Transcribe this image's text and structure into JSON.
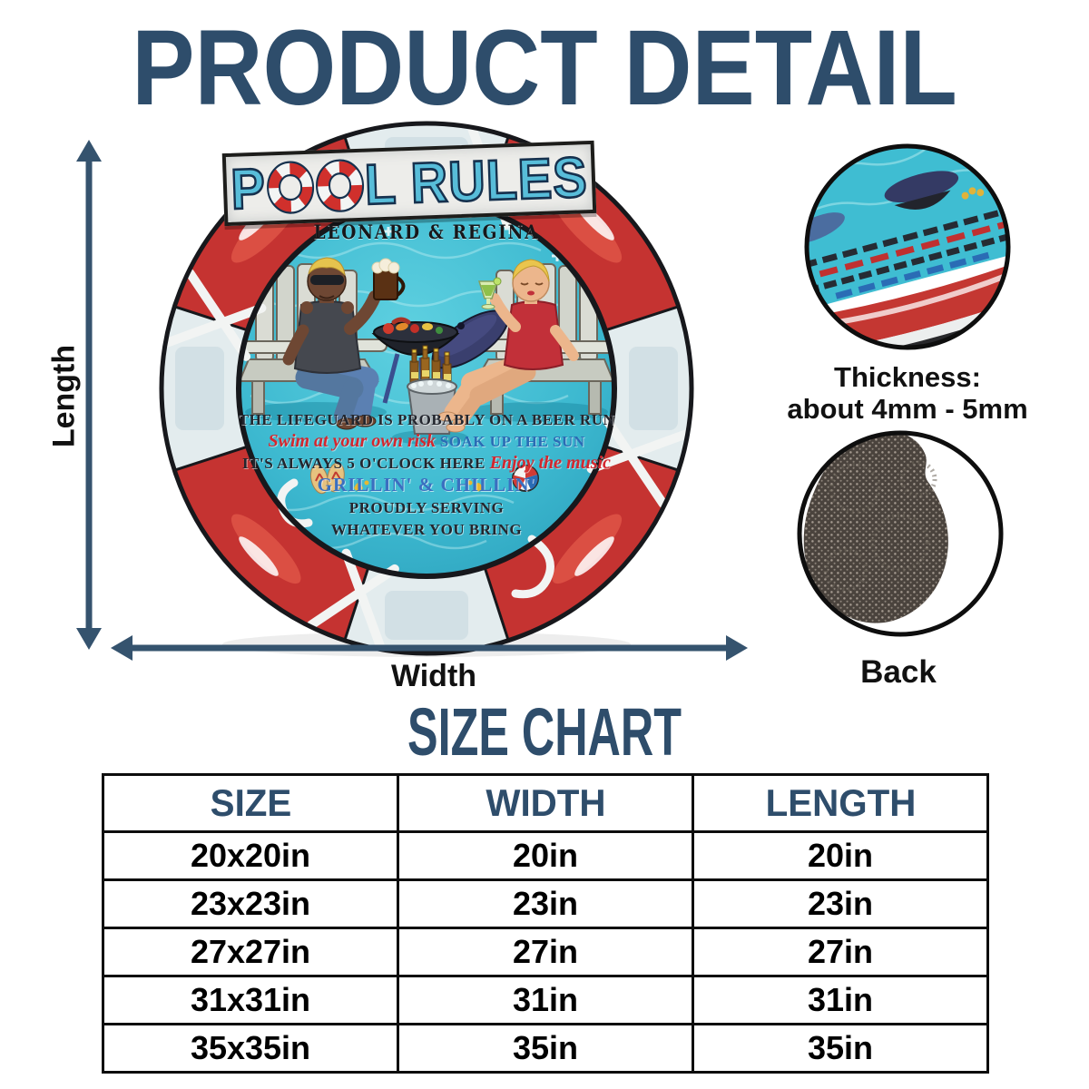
{
  "page": {
    "title": "PRODUCT DETAIL"
  },
  "dimensions": {
    "length_label": "Length",
    "width_label": "Width"
  },
  "product_sign": {
    "banner_title": "POOL RULES",
    "banner_parts": [
      {
        "t": "P"
      },
      {
        "ring": true
      },
      {
        "ring": true
      },
      {
        "t": "L RULES"
      }
    ],
    "owners_names": "LEONARD & REGINA",
    "rule_lines": [
      {
        "segments": [
          {
            "text": "THE LIFEGUARD IS PROBABLY ON A BEER RUN",
            "style": "dark"
          }
        ]
      },
      {
        "segments": [
          {
            "text": "Swim at your own risk",
            "style": "script"
          },
          {
            "text": " SOAK UP THE SUN",
            "style": "blue"
          }
        ]
      },
      {
        "segments": [
          {
            "text": "IT'S ALWAYS 5 O'CLOCK HERE ",
            "style": "dark"
          },
          {
            "text": "Enjoy the music",
            "style": "script"
          }
        ]
      },
      {
        "segments": [
          {
            "text": "GRILLIN' & CHILLIN'",
            "style": "blue-big"
          }
        ]
      },
      {
        "segments": [
          {
            "text": "PROUDLY SERVING",
            "style": "dark"
          }
        ]
      },
      {
        "segments": [
          {
            "text": "WHATEVER YOU BRING",
            "style": "dark"
          }
        ]
      }
    ],
    "icons": [
      "life-ring-glyph",
      "flip-flops-icon",
      "beach-ball-icon",
      "splash-icon"
    ]
  },
  "insets": {
    "thickness": {
      "label_line1": "Thickness:",
      "label_line2": "about 4mm - 5mm"
    },
    "back": {
      "label": "Back"
    }
  },
  "size_chart": {
    "title": "SIZE CHART",
    "columns": [
      "SIZE",
      "WIDTH",
      "LENGTH"
    ],
    "rows": [
      [
        "20x20in",
        "20in",
        "20in"
      ],
      [
        "23x23in",
        "23in",
        "23in"
      ],
      [
        "27x27in",
        "27in",
        "27in"
      ],
      [
        "31x31in",
        "31in",
        "31in"
      ],
      [
        "35x35in",
        "35in",
        "35in"
      ]
    ]
  },
  "colors": {
    "accent": "#2e4d6b",
    "label-dark": "#111111",
    "buoy-red": "#c53331",
    "buoy-pale": "#e2ebed",
    "pool-teal": "#45c3d8",
    "banner-letter": "#58bdd9",
    "banner-outline": "#16314e",
    "rule-dark": "#23262e",
    "rule-red": "#d4262e",
    "rule-blue": "#2a6cb5",
    "arrow": "#35536e",
    "back-mat": "#474038"
  }
}
